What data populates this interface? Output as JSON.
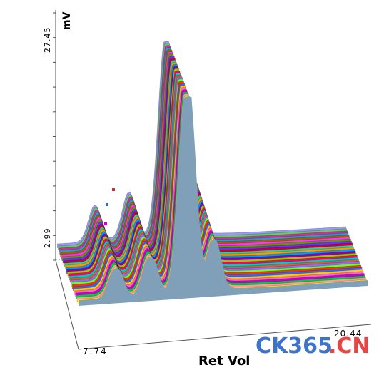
{
  "chart_data": {
    "type": "area",
    "style": "3d-waterfall",
    "ylabel": "mV",
    "xlabel": "Ret Vol",
    "y_ticks": [
      "27.45",
      "2.99"
    ],
    "x_ticks": [
      "7.74",
      "20.44"
    ],
    "ylim": [
      2.99,
      27.45
    ],
    "xlim": [
      7.74,
      20.44
    ],
    "grid": false,
    "legend": "none",
    "trace_count": 28,
    "peak_positions_x": [
      9.4,
      10.9,
      12.5,
      13.7
    ],
    "peak_heights_mV": [
      4.6,
      6.0,
      25.2,
      7.4
    ],
    "series_colors": [
      "#7fa0b8",
      "#ffff00",
      "#ff9999",
      "#00cc44",
      "#cc00cc",
      "#ff66cc",
      "#ffcc00",
      "#3366ff",
      "#ff3300",
      "#66ff33",
      "#9966ff",
      "#cc6633",
      "#00cccc",
      "#ff0066",
      "#99cc00",
      "#990099",
      "#0099ff",
      "#ff9900",
      "#33cc99",
      "#cc0033",
      "#6633ff",
      "#669900",
      "#ff33ff",
      "#996600",
      "#3399cc",
      "#cc3399",
      "#66cc66",
      "#9999ff"
    ]
  },
  "watermark": {
    "text_main": "CK365",
    "text_tld": ".CN",
    "color_main": "#3f73c7",
    "color_tld": "#e64545"
  }
}
